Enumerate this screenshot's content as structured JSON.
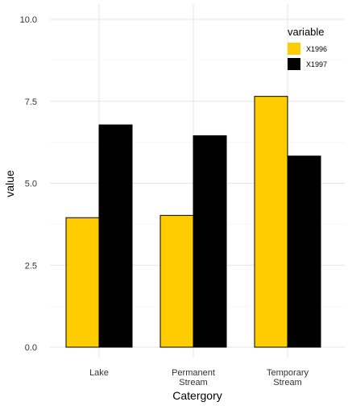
{
  "chart_data": {
    "type": "bar",
    "categories": [
      "Lake",
      "Permanent\nStream",
      "Temporary\nStream"
    ],
    "series": [
      {
        "name": "X1996",
        "values": [
          3.95,
          4.02,
          7.65
        ],
        "color": "#FFCC00"
      },
      {
        "name": "X1997",
        "values": [
          6.78,
          6.45,
          5.83
        ],
        "color": "#000000"
      }
    ],
    "xlabel": "Catergory",
    "ylabel": "value",
    "ylim": [
      0,
      10
    ],
    "yticks": [
      "0.0",
      "2.5",
      "5.0",
      "7.5",
      "10.0"
    ],
    "legend": {
      "title": "variable",
      "position": "top-right"
    },
    "grid": true
  }
}
